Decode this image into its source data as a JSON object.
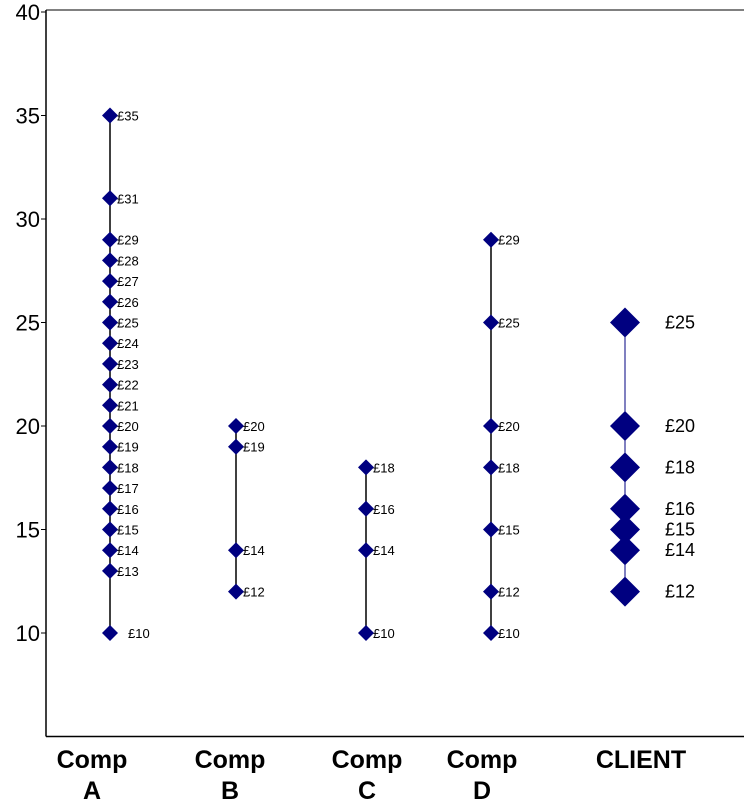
{
  "chart_data": {
    "type": "scatter",
    "title": "",
    "xlabel": "",
    "ylabel": "",
    "ylim": [
      5,
      40
    ],
    "yticks": [
      10,
      15,
      20,
      25,
      30,
      35,
      40
    ],
    "grid": false,
    "legend": "none",
    "marker_color": "#000080",
    "line_color": "#000000",
    "client_line_color": "#000080",
    "categories": [
      {
        "label_lines": [
          "Comp",
          "A"
        ],
        "values": [
          35,
          31,
          29,
          28,
          27,
          26,
          25,
          24,
          23,
          22,
          21,
          20,
          19,
          18,
          17,
          16,
          15,
          14,
          13,
          10
        ],
        "labels": [
          "£35",
          "£31",
          "£29",
          "£28",
          "£27",
          "£26",
          "£25",
          "£24",
          "£23",
          "£22",
          "£21",
          "£20",
          "£19",
          "£18",
          "£17",
          "£16",
          "£15",
          "£14",
          "£13",
          "£10"
        ]
      },
      {
        "label_lines": [
          "Comp",
          "B"
        ],
        "values": [
          20,
          19,
          14,
          12
        ],
        "labels": [
          "£20",
          "£19",
          "£14",
          "£12"
        ]
      },
      {
        "label_lines": [
          "Comp",
          "C"
        ],
        "values": [
          18,
          16,
          14,
          10
        ],
        "labels": [
          "£18",
          "£16",
          "£14",
          "£10"
        ]
      },
      {
        "label_lines": [
          "Comp",
          "D"
        ],
        "values": [
          29,
          25,
          20,
          18,
          15,
          12,
          10
        ],
        "labels": [
          "£29",
          "£25",
          "£20",
          "£18",
          "£15",
          "£12",
          "£10"
        ]
      },
      {
        "label_lines": [
          "CLIENT"
        ],
        "values": [
          25,
          20,
          18,
          16,
          15,
          14,
          12
        ],
        "labels": [
          "£25",
          "£20",
          "£18",
          "£16",
          "£15",
          "£14",
          "£12"
        ]
      }
    ]
  }
}
